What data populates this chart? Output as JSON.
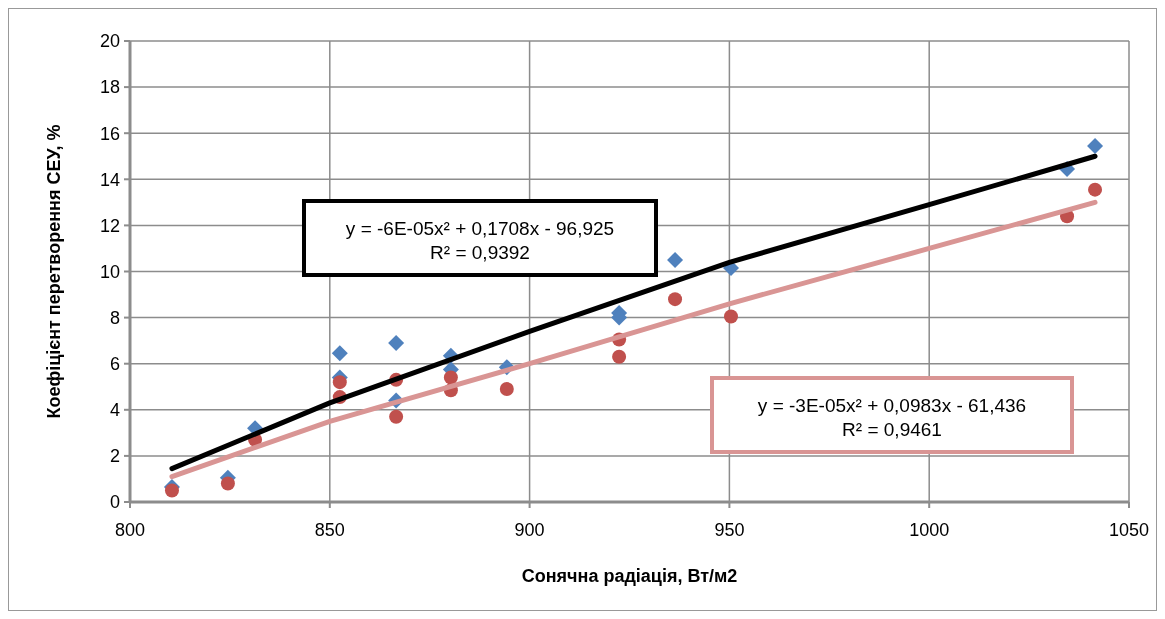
{
  "chart_data": {
    "type": "scatter",
    "xlabel": "Сонячна радіація, Вт/м2",
    "ylabel": "Коефіцієнт перетворення СЕУ, %",
    "xlim": [
      800,
      1050
    ],
    "xticks": [
      800,
      850,
      900,
      950,
      1000,
      1050
    ],
    "ylim": [
      0,
      20
    ],
    "yticks": [
      0,
      2,
      4,
      6,
      8,
      10,
      12,
      14,
      16,
      18,
      20
    ],
    "grid": true,
    "series": [
      {
        "marker": "diamond",
        "color": "#4f81bd",
        "x": [
          810.5,
          824.5,
          831.3,
          852.5,
          852.5,
          866.6,
          866.6,
          880.3,
          880.3,
          894.3,
          922.4,
          922.4,
          936.4,
          950.4,
          1034.5,
          1041.5
        ],
        "values": [
          0.65,
          1.05,
          3.2,
          6.45,
          5.4,
          6.9,
          4.4,
          6.35,
          5.75,
          5.85,
          8.2,
          8.0,
          10.5,
          10.15,
          14.45,
          15.45
        ]
      },
      {
        "marker": "circle",
        "color": "#c0504d",
        "x": [
          810.5,
          824.5,
          831.3,
          852.5,
          852.5,
          866.6,
          866.6,
          880.3,
          880.3,
          894.3,
          922.4,
          922.4,
          936.4,
          950.4,
          1034.5,
          1041.5
        ],
        "values": [
          0.5,
          0.8,
          2.7,
          5.2,
          4.55,
          5.3,
          3.7,
          5.4,
          4.85,
          4.9,
          7.05,
          6.3,
          8.8,
          8.05,
          12.4,
          13.55
        ]
      },
      {
        "type": "line",
        "marker": "none",
        "color": "#000000",
        "x": [
          810.5,
          850,
          900,
          950,
          1000,
          1041.5
        ],
        "values": [
          1.45,
          4.3,
          7.4,
          10.4,
          12.9,
          15.0
        ]
      },
      {
        "type": "line",
        "marker": "none",
        "color": "#d99594",
        "x": [
          810.5,
          850,
          900,
          950,
          1000,
          1041.5
        ],
        "values": [
          1.1,
          3.5,
          6.0,
          8.6,
          11.0,
          13.0
        ]
      }
    ],
    "annotations": [
      "y = -6E-05x² + 0,1708x - 96,925\nR² = 0,9392",
      "y = -3E-05x² + 0,0983x - 61,436\nR² = 0,9461"
    ]
  }
}
